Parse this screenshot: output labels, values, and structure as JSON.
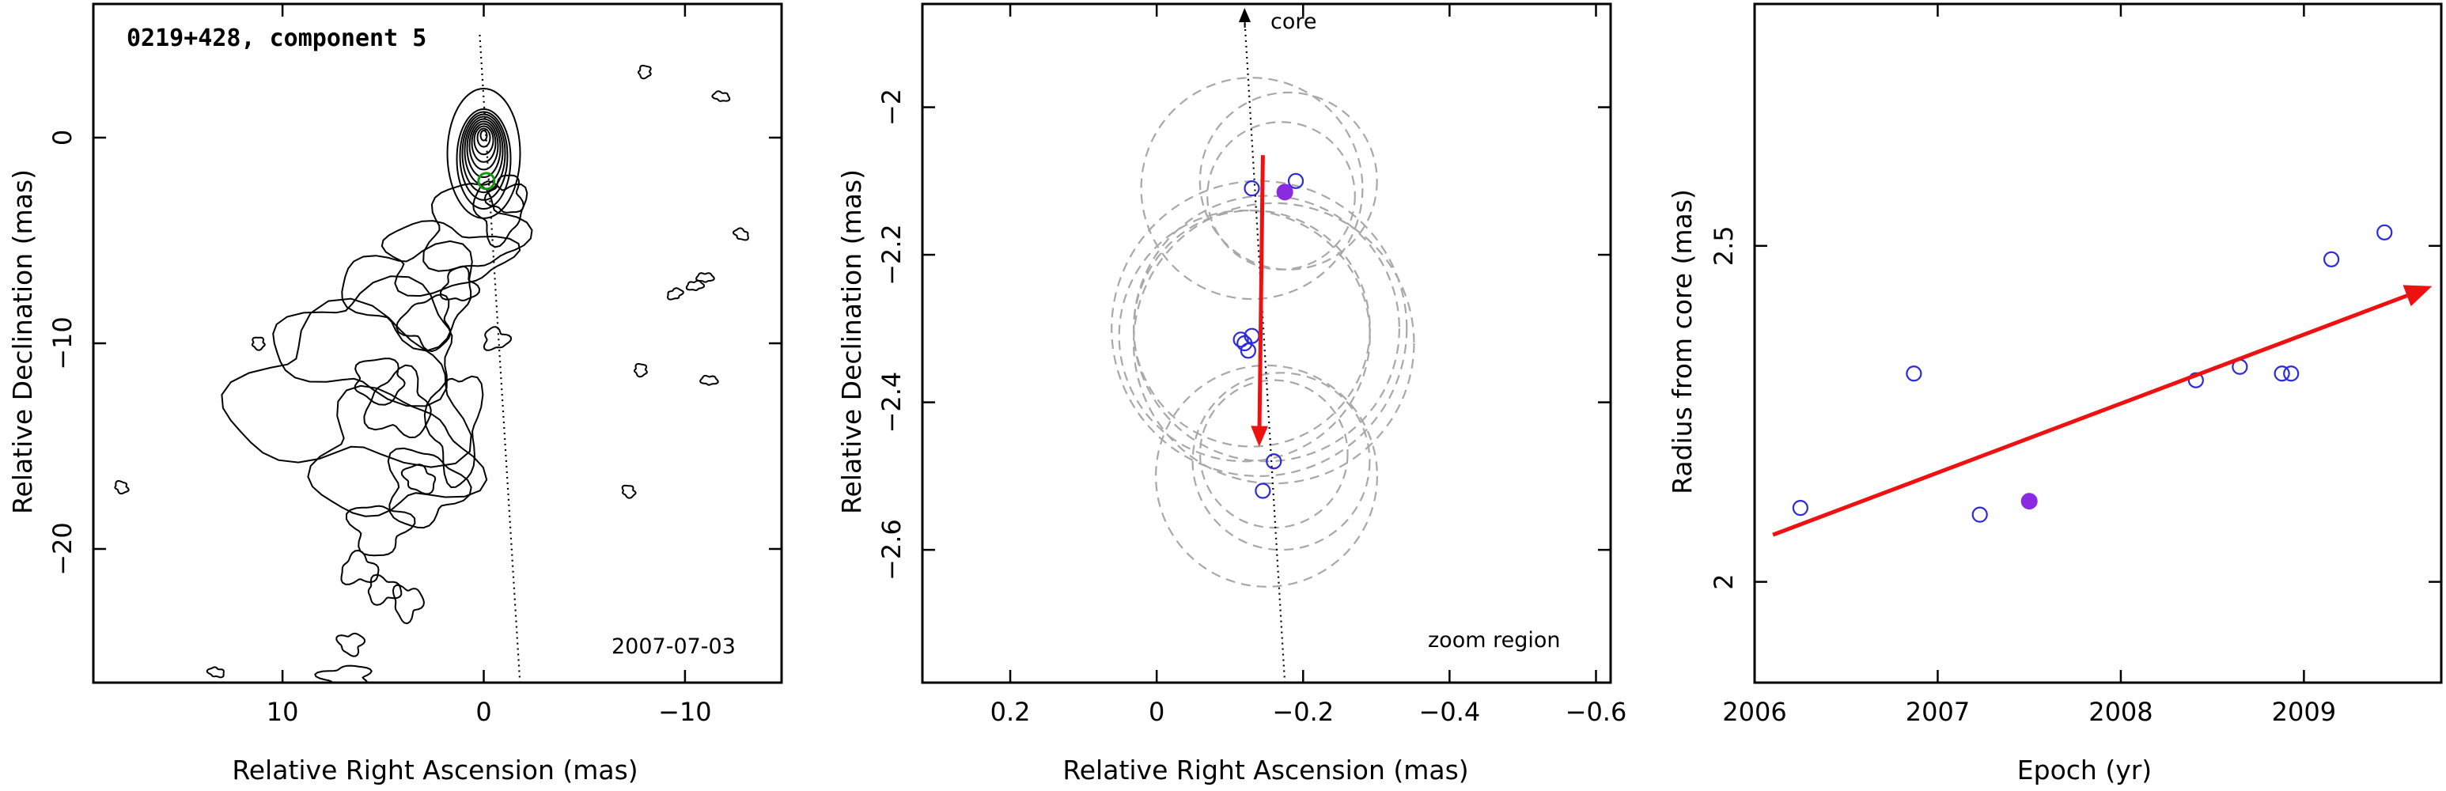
{
  "colors": {
    "open_point": "#2b2bdc",
    "filled_point": "#8a2be2",
    "trend": "#ee1111",
    "circle": "#a8a8a8",
    "component_marker": "#119911"
  },
  "panels": [
    {
      "id": "map",
      "title": "0219+428, component 5",
      "annotation": "2007-07-03",
      "xlabel": "Relative Right Ascension (mas)",
      "ylabel": "Relative Declination (mas)"
    },
    {
      "id": "zoom",
      "annotation": "zoom region",
      "core_label": "core",
      "xlabel": "Relative Right Ascension (mas)",
      "ylabel": "Relative Declination (mas)"
    },
    {
      "id": "radius",
      "xlabel": "Epoch (yr)",
      "ylabel": "Radius from core (mas)"
    }
  ],
  "chart_data": [
    {
      "type": "contour",
      "title": "0219+428, component 5",
      "xlabel": "Relative Right Ascension (mas)",
      "ylabel": "Relative Declination (mas)",
      "xlim": [
        19.4,
        -14.8
      ],
      "ylim": [
        -26.5,
        6.5
      ],
      "xticks": [
        10,
        0,
        -10
      ],
      "yticks": [
        0,
        -10,
        -20
      ],
      "epoch_label": "2007-07-03",
      "component_position": [
        -0.13,
        -2.11
      ],
      "extrapolation_line": [
        [
          0.2,
          5.0
        ],
        [
          -1.8,
          -26.5
        ]
      ]
    },
    {
      "type": "scatter",
      "xlabel": "Relative Right Ascension (mas)",
      "ylabel": "Relative Declination (mas)",
      "xlim": [
        0.32,
        -0.62
      ],
      "ylim": [
        -2.78,
        -1.86
      ],
      "xticks": [
        0.2,
        0,
        -0.2,
        -0.4,
        -0.6
      ],
      "yticks": [
        -2,
        -2.2,
        -2.4,
        -2.6
      ],
      "open_points": [
        [
          -0.13,
          -2.11
        ],
        [
          -0.19,
          -2.1
        ],
        [
          -0.12,
          -2.32
        ],
        [
          -0.13,
          -2.31
        ],
        [
          -0.125,
          -2.33
        ],
        [
          -0.115,
          -2.315
        ],
        [
          -0.16,
          -2.48
        ],
        [
          -0.145,
          -2.52
        ]
      ],
      "filled_points": [
        [
          -0.175,
          -2.115
        ]
      ],
      "uncertainty_circles": [
        {
          "center": [
            -0.13,
            -2.11
          ],
          "radius": 0.15
        },
        {
          "center": [
            -0.18,
            -2.1
          ],
          "radius": 0.12
        },
        {
          "center": [
            -0.17,
            -2.12
          ],
          "radius": 0.1
        },
        {
          "center": [
            -0.14,
            -2.3
          ],
          "radius": 0.2
        },
        {
          "center": [
            -0.15,
            -2.3
          ],
          "radius": 0.18
        },
        {
          "center": [
            -0.12,
            -2.31
          ],
          "radius": 0.17
        },
        {
          "center": [
            -0.16,
            -2.32
          ],
          "radius": 0.19
        },
        {
          "center": [
            -0.13,
            -2.3
          ],
          "radius": 0.16
        },
        {
          "center": [
            -0.15,
            -2.5
          ],
          "radius": 0.15
        },
        {
          "center": [
            -0.17,
            -2.48
          ],
          "radius": 0.12
        },
        {
          "center": [
            -0.16,
            -2.47
          ],
          "radius": 0.1
        }
      ],
      "motion_arrow": {
        "from": [
          -0.145,
          -2.065
        ],
        "to": [
          -0.14,
          -2.46
        ]
      },
      "core_direction_line": [
        [
          -0.12,
          -1.86
        ],
        [
          -0.175,
          -2.78
        ]
      ],
      "annotations": [
        "core",
        "zoom region"
      ]
    },
    {
      "type": "scatter",
      "xlabel": "Epoch (yr)",
      "ylabel": "Radius from core (mas)",
      "xlim": [
        2006.0,
        2009.75
      ],
      "ylim": [
        1.85,
        2.86
      ],
      "xticks": [
        2006,
        2007,
        2008,
        2009
      ],
      "yticks": [
        2,
        2.5
      ],
      "open_points": [
        [
          2006.25,
          2.11
        ],
        [
          2006.87,
          2.31
        ],
        [
          2007.23,
          2.1
        ],
        [
          2008.41,
          2.3
        ],
        [
          2008.65,
          2.32
        ],
        [
          2008.88,
          2.31
        ],
        [
          2008.93,
          2.31
        ],
        [
          2009.15,
          2.48
        ],
        [
          2009.44,
          2.52
        ]
      ],
      "filled_points": [
        [
          2007.5,
          2.12
        ]
      ],
      "trend_arrow": {
        "from": [
          2006.1,
          2.07
        ],
        "to": [
          2009.7,
          2.44
        ]
      }
    }
  ]
}
